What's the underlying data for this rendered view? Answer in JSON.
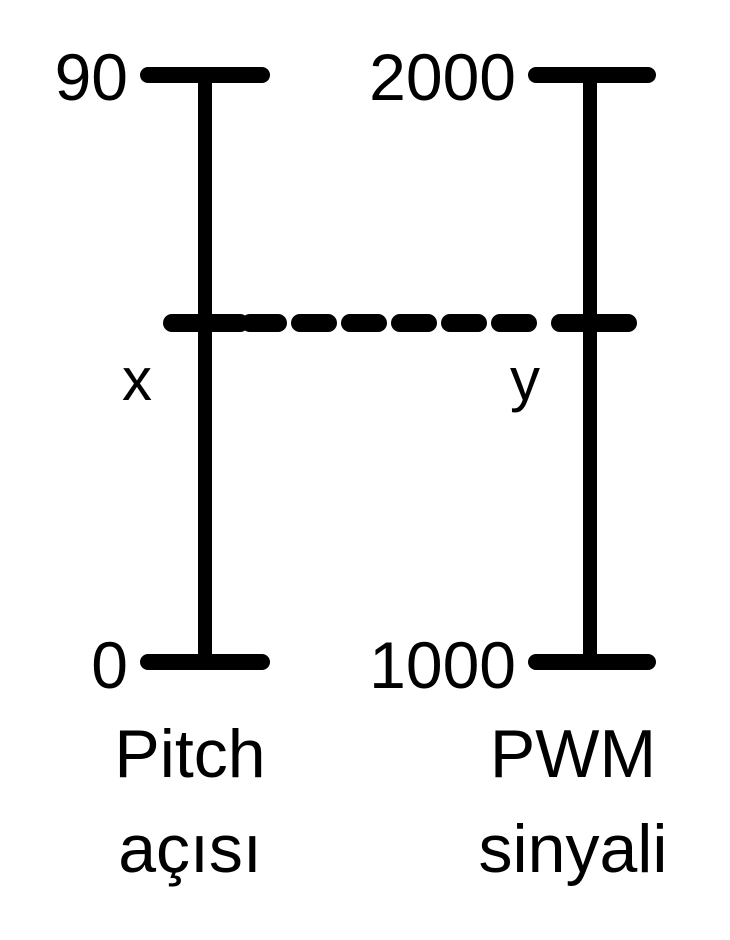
{
  "left_scale": {
    "top_label": "90",
    "bottom_label": "0",
    "variable_label": "x",
    "caption_line1": "Pitch",
    "caption_line2": "açısı"
  },
  "right_scale": {
    "top_label": "2000",
    "bottom_label": "1000",
    "variable_label": "y",
    "caption_line1": "PWM",
    "caption_line2": "sinyali"
  },
  "colors": {
    "ink": "#000000",
    "background": "#ffffff"
  }
}
